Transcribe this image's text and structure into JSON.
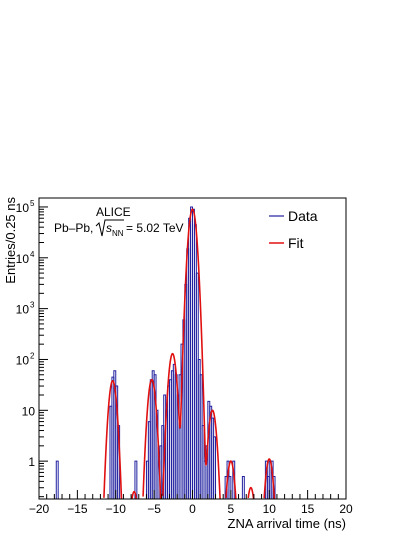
{
  "chart_data": {
    "type": "histogram",
    "xlabel": "ZNA arrival time (ns)",
    "ylabel": "Entries/0.25 ns",
    "xlim": [
      -20,
      20
    ],
    "ylim": [
      0.18,
      150000
    ],
    "yscale": "log",
    "grid": false,
    "legend": {
      "position": "top-right",
      "entries": [
        {
          "label": "Data",
          "color": "#2020a0"
        },
        {
          "label": "Fit",
          "color": "#e01010"
        }
      ]
    },
    "annotations": {
      "experiment": "ALICE",
      "system_prefix": "Pb–Pb,",
      "energy_suffix": "= 5.02 TeV",
      "sqrt_s_symbol": "s",
      "sqrt_s_subscript": "NN"
    },
    "x_ticks": [
      {
        "value": -20,
        "label": "−20"
      },
      {
        "value": -15,
        "label": "−15"
      },
      {
        "value": -10,
        "label": "−10"
      },
      {
        "value": -5,
        "label": "−5"
      },
      {
        "value": 0,
        "label": "0"
      },
      {
        "value": 5,
        "label": "5"
      },
      {
        "value": 10,
        "label": "10"
      },
      {
        "value": 15,
        "label": "15"
      },
      {
        "value": 20,
        "label": "20"
      }
    ],
    "y_ticks": [
      {
        "value": 1,
        "base": "1",
        "exp": ""
      },
      {
        "value": 10,
        "base": "10",
        "exp": ""
      },
      {
        "value": 100,
        "base": "10",
        "exp": "2"
      },
      {
        "value": 1000,
        "base": "10",
        "exp": "3"
      },
      {
        "value": 10000,
        "base": "10",
        "exp": "4"
      },
      {
        "value": 100000,
        "base": "10",
        "exp": "5"
      }
    ],
    "histogram": {
      "name": "Data",
      "bin_width": 0.25,
      "bins": [
        [
          -17.75,
          1
        ],
        [
          -10.75,
          12
        ],
        [
          -10.5,
          45
        ],
        [
          -10.25,
          60
        ],
        [
          -10.0,
          30
        ],
        [
          -9.75,
          5
        ],
        [
          -7.5,
          1
        ],
        [
          -6.0,
          1
        ],
        [
          -5.75,
          6
        ],
        [
          -5.5,
          40
        ],
        [
          -5.25,
          60
        ],
        [
          -5.0,
          50
        ],
        [
          -4.75,
          10
        ],
        [
          -4.5,
          1
        ],
        [
          -4.25,
          2
        ],
        [
          -4.0,
          5
        ],
        [
          -3.75,
          20
        ],
        [
          -3.5,
          10
        ],
        [
          -3.25,
          30
        ],
        [
          -3.0,
          40
        ],
        [
          -2.75,
          60
        ],
        [
          -2.5,
          80
        ],
        [
          -2.25,
          50
        ],
        [
          -2.0,
          20
        ],
        [
          -1.75,
          50
        ],
        [
          -1.5,
          200
        ],
        [
          -1.25,
          600
        ],
        [
          -1.0,
          3000
        ],
        [
          -0.75,
          15000
        ],
        [
          -0.5,
          60000
        ],
        [
          -0.25,
          100000
        ],
        [
          0.0,
          90000
        ],
        [
          0.25,
          45000
        ],
        [
          0.5,
          5000
        ],
        [
          0.75,
          100
        ],
        [
          1.0,
          50
        ],
        [
          1.25,
          5
        ],
        [
          1.5,
          1
        ],
        [
          1.75,
          2
        ],
        [
          2.0,
          15
        ],
        [
          2.25,
          12
        ],
        [
          2.5,
          7
        ],
        [
          2.75,
          3
        ],
        [
          4.25,
          0.5
        ],
        [
          4.5,
          1
        ],
        [
          4.75,
          0.5
        ],
        [
          5.25,
          1
        ],
        [
          6.5,
          0.5
        ],
        [
          9.5,
          1
        ],
        [
          9.75,
          0.5
        ],
        [
          10.0,
          1
        ],
        [
          10.25,
          1
        ],
        [
          10.5,
          0.5
        ]
      ]
    },
    "fit": {
      "name": "Fit",
      "baseline": 0.001,
      "components": [
        {
          "amplitude": 90000,
          "mean": 0.0,
          "sigma": 0.35
        },
        {
          "amplitude": 130,
          "mean": -2.6,
          "sigma": 0.35
        },
        {
          "amplitude": 40,
          "mean": -5.3,
          "sigma": 0.35
        },
        {
          "amplitude": 10,
          "mean": 2.6,
          "sigma": 0.35
        },
        {
          "amplitude": 38,
          "mean": -10.4,
          "sigma": 0.35
        },
        {
          "amplitude": 1.0,
          "mean": 5.0,
          "sigma": 0.35
        },
        {
          "amplitude": 1.1,
          "mean": 10.0,
          "sigma": 0.35
        },
        {
          "amplitude": 0.25,
          "mean": -7.6,
          "sigma": 0.35
        },
        {
          "amplitude": 0.3,
          "mean": 7.6,
          "sigma": 0.35
        }
      ]
    }
  }
}
